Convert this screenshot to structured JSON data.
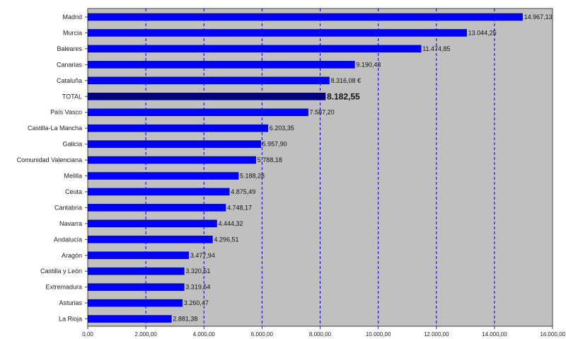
{
  "chart_data": {
    "type": "bar",
    "orientation": "horizontal",
    "categories": [
      "Madrid",
      "Murcia",
      "Baleares",
      "Canarias",
      "Cataluña",
      "TOTAL",
      "País Vasco",
      "Castilla-La Mancha",
      "Galicia",
      "Comunidad Valenciana",
      "Melilla",
      "Ceuta",
      "Cantabria",
      "Navarra",
      "Andalucía",
      "Aragón",
      "Castilla y León",
      "Extremadura",
      "Asturias",
      "La Rioja"
    ],
    "values": [
      14967.13,
      13044.25,
      11474.85,
      9190.43,
      8316.08,
      8182.55,
      7587.2,
      6203.35,
      5957.9,
      5788.18,
      5188.28,
      4875.49,
      4748.17,
      4444.32,
      4296.51,
      3477.94,
      3320.51,
      3319.54,
      3260.47,
      2881.38
    ],
    "value_labels": [
      "14.967,13",
      "13.044,25",
      "11.474,85",
      "9.190,43",
      "8.316,08 €",
      "8.182,55",
      "7.587,20",
      "6.203,35",
      "5.957,90",
      "5.788,18",
      "5.188,28",
      "4.875,49",
      "4.748,17",
      "4.444,32",
      "4.296,51",
      "3.477,94",
      "3.320,51",
      "3.319,54",
      "3.260,47",
      "2.881,38"
    ],
    "highlight_category": "TOTAL",
    "x_ticks": [
      0,
      2000,
      4000,
      6000,
      8000,
      10000,
      12000,
      14000,
      16000
    ],
    "x_tick_labels": [
      "0,00",
      "2.000,00",
      "4.000,00",
      "6.000,00",
      "8.000,00",
      "10.000,00",
      "12.000,00",
      "14.000,00",
      "16.000,00"
    ],
    "xlim": [
      0,
      16000
    ],
    "grid": "vertical-dashed",
    "legend": "none",
    "title": "",
    "xlabel": "",
    "ylabel": ""
  },
  "colors": {
    "plot_background": "#c0c0c0",
    "bar": "#0000ff",
    "bar_highlight": "#000080",
    "bar_edge": "#000066",
    "grid": "#0000aa",
    "axis": "#444444"
  }
}
